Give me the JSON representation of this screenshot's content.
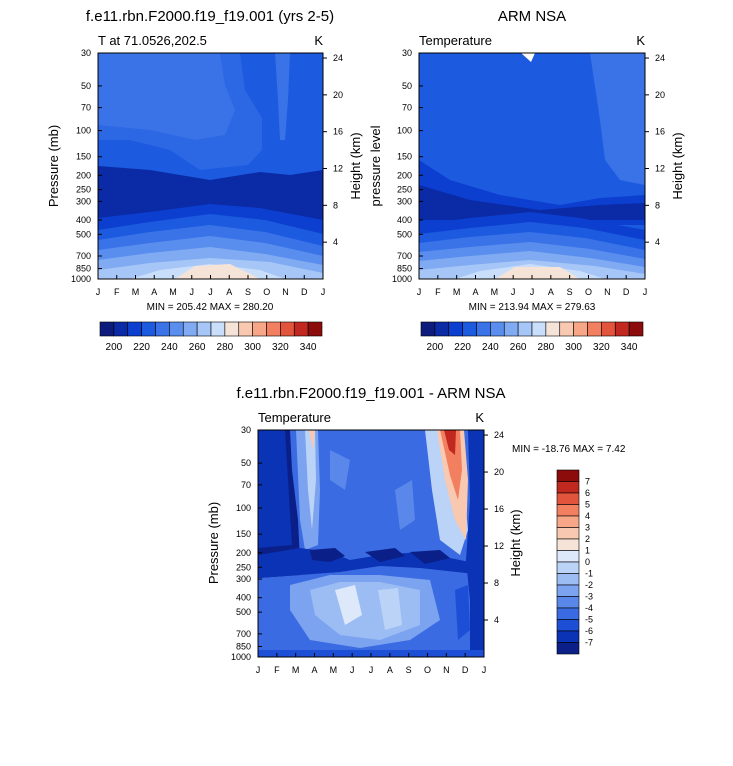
{
  "chart_data": [
    {
      "type": "heatmap",
      "title": "f.e11.rbn.F2000.f19_f19.001 (yrs 2-5)",
      "subtitle_left": "T at 71.0526,202.5",
      "subtitle_right": "K",
      "ylabel": "Pressure (mb)",
      "ylabel_right": "Height (km)",
      "x_ticks": [
        "J",
        "F",
        "M",
        "A",
        "M",
        "J",
        "J",
        "A",
        "S",
        "O",
        "N",
        "D",
        "J"
      ],
      "y_ticks": [
        "30",
        "50",
        "70",
        "100",
        "150",
        "200",
        "250",
        "300",
        "400",
        "500",
        "700",
        "850",
        "1000"
      ],
      "y_right_ticks": [
        "24",
        "20",
        "16",
        "12",
        "8",
        "4"
      ],
      "stats": "MIN = 205.42 MAX = 280.20",
      "colorbar_labels": [
        "200",
        "220",
        "240",
        "260",
        "280",
        "300",
        "320",
        "340"
      ],
      "levels": [
        190,
        200,
        210,
        220,
        230,
        240,
        250,
        260,
        270,
        280,
        290,
        300,
        310,
        320,
        330,
        340,
        350
      ],
      "range": [
        205.42,
        280.2
      ]
    },
    {
      "type": "heatmap",
      "title": "ARM NSA",
      "subtitle_left": "Temperature",
      "subtitle_right": "K",
      "ylabel": "pressure level",
      "ylabel_right": "Height (km)",
      "x_ticks": [
        "J",
        "F",
        "M",
        "A",
        "M",
        "J",
        "J",
        "A",
        "S",
        "O",
        "N",
        "D",
        "J"
      ],
      "y_ticks": [
        "30",
        "50",
        "70",
        "100",
        "150",
        "200",
        "250",
        "300",
        "400",
        "500",
        "700",
        "850",
        "1000"
      ],
      "y_right_ticks": [
        "24",
        "20",
        "16",
        "12",
        "8",
        "4"
      ],
      "stats": "MIN = 213.94 MAX = 279.63",
      "colorbar_labels": [
        "200",
        "220",
        "240",
        "260",
        "280",
        "300",
        "320",
        "340"
      ],
      "levels": [
        190,
        200,
        210,
        220,
        230,
        240,
        250,
        260,
        270,
        280,
        290,
        300,
        310,
        320,
        330,
        340,
        350
      ],
      "range": [
        213.94,
        279.63
      ]
    },
    {
      "type": "heatmap",
      "title": "f.e11.rbn.F2000.f19_f19.001 - ARM NSA",
      "subtitle_left": "Temperature",
      "subtitle_right": "K",
      "ylabel": "Pressure (mb)",
      "ylabel_right": "Height (km)",
      "x_ticks": [
        "J",
        "F",
        "M",
        "A",
        "M",
        "J",
        "J",
        "A",
        "S",
        "O",
        "N",
        "D",
        "J"
      ],
      "y_ticks": [
        "30",
        "50",
        "70",
        "100",
        "150",
        "200",
        "250",
        "300",
        "400",
        "500",
        "700",
        "850",
        "1000"
      ],
      "y_right_ticks": [
        "24",
        "20",
        "16",
        "12",
        "8",
        "4"
      ],
      "stats": "MIN = -18.76 MAX =   7.42",
      "colorbar_labels": [
        "7",
        "6",
        "5",
        "4",
        "3",
        "2",
        "1",
        "0",
        "-1",
        "-2",
        "-3",
        "-4",
        "-5",
        "-6",
        "-7"
      ],
      "levels": [
        -8,
        -7,
        -6,
        -5,
        -4,
        -3,
        -2,
        -1,
        0,
        1,
        2,
        3,
        4,
        5,
        6,
        7,
        8
      ],
      "range": [
        -18.76,
        7.42
      ]
    }
  ],
  "colors": {
    "abs_palette": [
      "#0d1c7c",
      "#0a2aa6",
      "#0c3fcf",
      "#1c5ae0",
      "#3a73e8",
      "#5a8eee",
      "#80abf2",
      "#a6c6f7",
      "#c9defa",
      "#f6e3d8",
      "#f9c8b0",
      "#f7a787",
      "#f27f5f",
      "#e2553c",
      "#c1281f",
      "#8c0c0c"
    ],
    "diff_palette": [
      "#8c0c0c",
      "#c1281f",
      "#e2553c",
      "#f27f5f",
      "#f7a787",
      "#f9c8b0",
      "#f6e3d8",
      "#dde9fb",
      "#bcd3f8",
      "#9cbcf4",
      "#7ba3ef",
      "#5a88ea",
      "#3a6be2",
      "#1c4fd6",
      "#0b33b5",
      "#0a1f88"
    ]
  }
}
